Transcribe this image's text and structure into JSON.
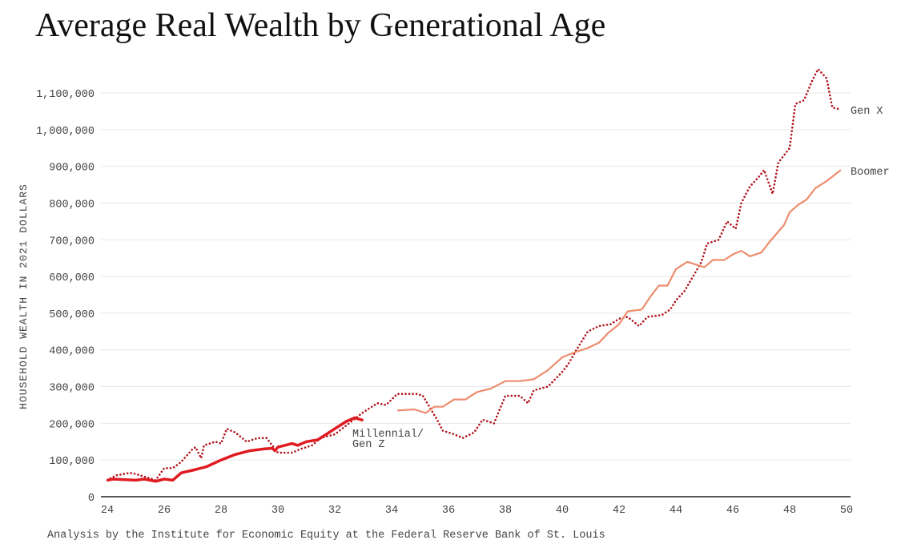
{
  "chart_data": {
    "type": "line",
    "title": "Average Real Wealth by Generational Age",
    "ylabel": "HOUSEHOLD WEALTH IN 2021 DOLLARS",
    "xlabel": "",
    "source": "Analysis by the Institute for Economic Equity at the Federal Reserve Bank of St. Louis",
    "xlim": [
      24,
      50
    ],
    "ylim": [
      0,
      1100000
    ],
    "xticks": [
      "24",
      "26",
      "28",
      "30",
      "32",
      "34",
      "36",
      "38",
      "40",
      "42",
      "44",
      "46",
      "48",
      "50"
    ],
    "yticks": [
      "0",
      "100,000",
      "200,000",
      "300,000",
      "400,000",
      "500,000",
      "600,000",
      "700,000",
      "800,000",
      "900,000",
      "1,000,000",
      "1,100,000"
    ],
    "grid": true,
    "series": [
      {
        "name": "Gen X",
        "color": "#b0101a",
        "style": "dotted",
        "x": [
          24,
          24.3,
          24.8,
          25,
          25.5,
          25.7,
          26,
          26.3,
          26.6,
          27,
          27.1,
          27.3,
          27.4,
          27.8,
          28,
          28.2,
          28.5,
          28.9,
          29.3,
          29.6,
          29.8,
          30,
          30.5,
          30.8,
          31.2,
          31.5,
          32,
          32.5,
          33,
          33.5,
          33.8,
          34.2,
          34.9,
          35.1,
          35.6,
          35.8,
          36.2,
          36.5,
          36.9,
          37.2,
          37.6,
          38,
          38.5,
          38.8,
          39,
          39.5,
          40,
          40.2,
          40.5,
          40.9,
          41.3,
          41.7,
          42,
          42.3,
          42.7,
          43,
          43.5,
          43.8,
          44,
          44.3,
          44.6,
          44.9,
          45.1,
          45.5,
          45.8,
          46.1,
          46.3,
          46.6,
          46.9,
          47.1,
          47.4,
          47.6,
          48,
          48.2,
          48.5,
          48.8,
          49,
          49.3,
          49.5,
          49.8
        ],
        "y": [
          45000,
          58000,
          65000,
          62000,
          50000,
          45000,
          78000,
          78000,
          95000,
          130000,
          135000,
          105000,
          140000,
          150000,
          145000,
          185000,
          175000,
          150000,
          160000,
          160000,
          140000,
          120000,
          120000,
          130000,
          140000,
          160000,
          170000,
          200000,
          230000,
          255000,
          250000,
          280000,
          280000,
          275000,
          210000,
          180000,
          170000,
          160000,
          175000,
          210000,
          200000,
          275000,
          275000,
          255000,
          290000,
          300000,
          340000,
          360000,
          400000,
          450000,
          465000,
          470000,
          485000,
          490000,
          465000,
          490000,
          495000,
          510000,
          535000,
          560000,
          600000,
          640000,
          690000,
          700000,
          750000,
          730000,
          800000,
          845000,
          870000,
          890000,
          825000,
          910000,
          950000,
          1070000,
          1080000,
          1135000,
          1165000,
          1140000,
          1060000,
          1055000
        ]
      },
      {
        "name": "Boomer",
        "color": "#ee8c6e",
        "style": "solid",
        "x": [
          34.2,
          34.8,
          35.2,
          35.5,
          35.8,
          36.2,
          36.6,
          37,
          37.5,
          38,
          38.5,
          39,
          39.5,
          40,
          40.5,
          40.9,
          41.3,
          41.6,
          42,
          42.3,
          42.8,
          43.1,
          43.4,
          43.7,
          44,
          44.4,
          44.8,
          45,
          45.3,
          45.7,
          46,
          46.3,
          46.6,
          47,
          47.3,
          47.8,
          48,
          48.3,
          48.6,
          48.9,
          49.3,
          49.8
        ],
        "y": [
          235000,
          238000,
          228000,
          245000,
          245000,
          265000,
          265000,
          285000,
          295000,
          315000,
          315000,
          320000,
          345000,
          380000,
          395000,
          405000,
          420000,
          445000,
          470000,
          505000,
          510000,
          545000,
          575000,
          575000,
          620000,
          640000,
          630000,
          625000,
          645000,
          645000,
          660000,
          670000,
          655000,
          665000,
          695000,
          740000,
          775000,
          795000,
          810000,
          840000,
          860000,
          890000
        ]
      },
      {
        "name": "Millennial/ Gen Z",
        "label_lines": [
          "Millennial/",
          "Gen Z"
        ],
        "color": "#e01b22",
        "style": "solid-thick",
        "x": [
          24,
          24.2,
          25,
          25.3,
          25.7,
          26,
          26.3,
          26.6,
          27,
          27.5,
          28,
          28.5,
          29,
          29.5,
          29.8,
          29.9,
          30,
          30.5,
          30.7,
          31,
          31.4,
          31.6,
          32,
          32.4,
          32.7,
          33
        ],
        "y": [
          45000,
          48000,
          45000,
          48000,
          42000,
          48000,
          45000,
          65000,
          72000,
          82000,
          100000,
          115000,
          125000,
          130000,
          132000,
          125000,
          135000,
          145000,
          140000,
          150000,
          155000,
          165000,
          185000,
          205000,
          215000,
          208000
        ]
      }
    ]
  }
}
